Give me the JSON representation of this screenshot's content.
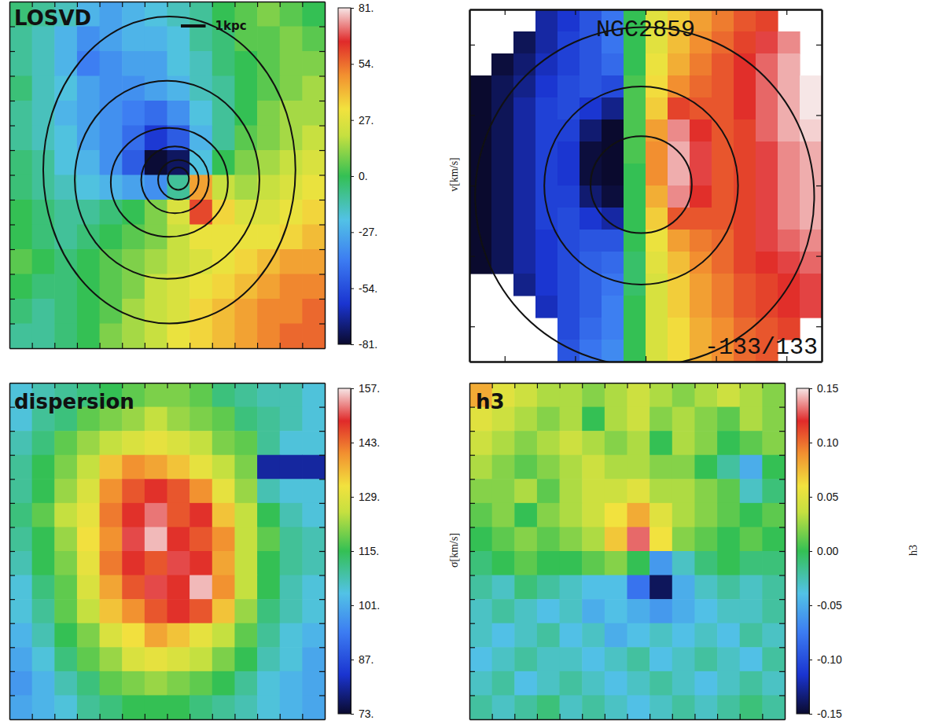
{
  "chart_data": [
    {
      "type": "heatmap",
      "title": "LOSVD",
      "xlim": [
        0,
        14
      ],
      "ylim": [
        0,
        14
      ],
      "xticks": [
        1,
        2,
        3,
        4,
        5,
        6,
        7,
        8,
        9,
        10,
        11,
        12,
        13
      ],
      "yticks": [
        1,
        2,
        3,
        4,
        5,
        6,
        7,
        8,
        9,
        10,
        11,
        12,
        13
      ],
      "tick_labels": false,
      "cells": [
        [
          -5,
          -10,
          -15,
          -25,
          -30,
          -25,
          -20,
          -15,
          -10,
          0,
          5,
          10,
          5,
          0
        ],
        [
          -10,
          -15,
          -25,
          -35,
          -30,
          -25,
          -25,
          -20,
          -10,
          -5,
          5,
          5,
          10,
          5
        ],
        [
          -10,
          -15,
          -25,
          -40,
          -35,
          -30,
          -30,
          -20,
          -15,
          -5,
          0,
          5,
          10,
          10
        ],
        [
          -5,
          -15,
          -20,
          -30,
          -35,
          -35,
          -30,
          -25,
          -15,
          -10,
          0,
          5,
          10,
          15
        ],
        [
          -10,
          -15,
          -25,
          -30,
          -35,
          -40,
          -45,
          -35,
          -20,
          -10,
          0,
          10,
          15,
          15
        ],
        [
          -10,
          -15,
          -20,
          -30,
          -35,
          -45,
          -60,
          -50,
          -25,
          -10,
          5,
          10,
          15,
          20
        ],
        [
          -5,
          -10,
          -20,
          -25,
          -35,
          -50,
          -80,
          -75,
          -20,
          0,
          10,
          15,
          20,
          25
        ],
        [
          -5,
          -10,
          -15,
          -20,
          -25,
          -30,
          -35,
          -10,
          45,
          20,
          15,
          20,
          25,
          30
        ],
        [
          0,
          -5,
          -10,
          -10,
          -5,
          0,
          10,
          25,
          60,
          35,
          25,
          25,
          30,
          35
        ],
        [
          0,
          -5,
          -10,
          -5,
          0,
          5,
          10,
          20,
          30,
          30,
          30,
          30,
          35,
          40
        ],
        [
          5,
          0,
          -5,
          0,
          5,
          10,
          15,
          20,
          25,
          30,
          35,
          40,
          45,
          45
        ],
        [
          0,
          -5,
          -5,
          0,
          5,
          10,
          20,
          25,
          30,
          35,
          40,
          45,
          50,
          50
        ],
        [
          -5,
          -10,
          -5,
          0,
          5,
          15,
          20,
          25,
          35,
          40,
          45,
          50,
          50,
          55
        ],
        [
          -10,
          -10,
          -5,
          0,
          10,
          15,
          20,
          30,
          35,
          40,
          45,
          50,
          55,
          55
        ]
      ],
      "contours": [
        {
          "cx": 7.1,
          "cy": 7.2,
          "rx": 5.6,
          "ry": 6.2
        },
        {
          "cx": 7.0,
          "cy": 6.8,
          "rx": 4.1,
          "ry": 4.0
        },
        {
          "cx": 7.1,
          "cy": 6.7,
          "rx": 2.6,
          "ry": 2.2
        },
        {
          "cx": 7.35,
          "cy": 6.8,
          "rx": 1.5,
          "ry": 1.35
        },
        {
          "cx": 7.5,
          "cy": 6.8,
          "rx": 0.9,
          "ry": 0.8
        },
        {
          "cx": 7.5,
          "cy": 6.85,
          "rx": 0.47,
          "ry": 0.45
        }
      ],
      "scale_bar": {
        "label": "1kpc",
        "length": 1.1
      },
      "colorbar": {
        "range": [
          -81,
          81
        ],
        "ticks": [
          {
            "value": 81,
            "label": "81."
          },
          {
            "value": 54,
            "label": "54."
          },
          {
            "value": 27,
            "label": "27."
          },
          {
            "value": 0,
            "label": "0."
          },
          {
            "value": -27,
            "label": "-27."
          },
          {
            "value": -54,
            "label": "-54."
          },
          {
            "value": -81,
            "label": "-81."
          }
        ],
        "label": "v[km/s]"
      }
    },
    {
      "type": "heatmap",
      "title": "NGC2859",
      "annotation": "-133/133",
      "xlim": [
        0,
        16
      ],
      "ylim": [
        0,
        16
      ],
      "xticks": [
        1.6,
        4.8,
        8,
        11.2,
        14.4
      ],
      "yticks": [
        1.6,
        4.8,
        8,
        11.2,
        14.4
      ],
      "tick_labels": false,
      "cells": [
        [
          null,
          null,
          null,
          -110,
          -100,
          -85,
          -70,
          0,
          45,
          60,
          75,
          85,
          95,
          100,
          null,
          null
        ],
        [
          null,
          null,
          -125,
          -110,
          -95,
          -85,
          -70,
          0,
          45,
          65,
          80,
          90,
          100,
          110,
          120,
          null
        ],
        [
          null,
          -130,
          -120,
          -105,
          -95,
          -85,
          -75,
          0,
          50,
          70,
          85,
          95,
          105,
          115,
          125,
          null
        ],
        [
          -133,
          -125,
          -115,
          -100,
          -90,
          -85,
          -90,
          5,
          55,
          80,
          90,
          95,
          105,
          115,
          125,
          133
        ],
        [
          -133,
          -125,
          -110,
          -95,
          -90,
          -100,
          -115,
          5,
          60,
          100,
          95,
          95,
          105,
          115,
          125,
          133
        ],
        [
          -133,
          -125,
          -110,
          -95,
          -95,
          -120,
          -133,
          5,
          75,
          120,
          105,
          95,
          100,
          115,
          125,
          130
        ],
        [
          -133,
          -125,
          -110,
          -95,
          -100,
          -130,
          -133,
          5,
          80,
          125,
          110,
          95,
          100,
          110,
          120,
          125
        ],
        [
          -133,
          -125,
          -110,
          -95,
          -100,
          -130,
          -133,
          0,
          80,
          125,
          110,
          95,
          100,
          110,
          120,
          125
        ],
        [
          -133,
          -125,
          -110,
          -95,
          -95,
          -120,
          -130,
          0,
          70,
          120,
          105,
          95,
          100,
          110,
          120,
          125
        ],
        [
          -133,
          -125,
          -110,
          -95,
          -90,
          -100,
          -110,
          0,
          60,
          95,
          95,
          95,
          100,
          110,
          120,
          125
        ],
        [
          -133,
          -125,
          -110,
          -100,
          -90,
          -85,
          -85,
          0,
          50,
          75,
          85,
          90,
          100,
          110,
          115,
          120
        ],
        [
          -133,
          -125,
          -110,
          -100,
          -90,
          -80,
          -75,
          -5,
          45,
          65,
          80,
          90,
          100,
          105,
          110,
          115
        ],
        [
          null,
          null,
          -115,
          -100,
          -90,
          -80,
          -70,
          -5,
          40,
          60,
          75,
          85,
          95,
          100,
          105,
          110
        ],
        [
          null,
          null,
          null,
          -105,
          -90,
          -80,
          -65,
          0,
          40,
          60,
          75,
          85,
          95,
          100,
          105,
          110
        ],
        [
          null,
          null,
          null,
          null,
          -90,
          -75,
          -65,
          0,
          40,
          55,
          70,
          80,
          90,
          95,
          100,
          null
        ],
        [
          null,
          null,
          null,
          null,
          -85,
          -70,
          -60,
          0,
          40,
          55,
          70,
          80,
          90,
          95,
          null,
          null
        ]
      ],
      "contours": [
        {
          "cx": 7.8,
          "cy": 8.04,
          "rx": 2.3,
          "ry": 2.2
        },
        {
          "cx": 7.8,
          "cy": 8.0,
          "rx": 4.4,
          "ry": 4.5
        },
        {
          "cx": 7.96,
          "cy": 7.5,
          "rx": 7.7,
          "ry": 7.7
        }
      ],
      "colorbar": {
        "range": [
          -133,
          133
        ]
      }
    },
    {
      "type": "heatmap",
      "title": "dispersion",
      "xlim": [
        0,
        14
      ],
      "ylim": [
        0,
        14
      ],
      "xticks": [
        1,
        2,
        3,
        4,
        5,
        6,
        7,
        8,
        9,
        10,
        11,
        12,
        13
      ],
      "yticks": [
        1,
        2,
        3,
        4,
        5,
        6,
        7,
        8,
        9,
        10,
        11,
        12,
        13
      ],
      "tick_labels": false,
      "cells": [
        [
          105,
          108,
          110,
          112,
          115,
          118,
          120,
          120,
          118,
          112,
          110,
          108,
          108,
          105
        ],
        [
          105,
          110,
          112,
          118,
          120,
          122,
          125,
          122,
          120,
          118,
          112,
          110,
          108,
          105
        ],
        [
          108,
          112,
          118,
          122,
          125,
          128,
          130,
          128,
          125,
          120,
          118,
          110,
          105,
          105
        ],
        [
          110,
          115,
          120,
          125,
          135,
          140,
          138,
          135,
          130,
          125,
          120,
          80,
          80,
          80
        ],
        [
          110,
          115,
          122,
          128,
          140,
          145,
          148,
          145,
          140,
          130,
          122,
          108,
          105,
          105
        ],
        [
          112,
          118,
          125,
          130,
          142,
          148,
          152,
          145,
          148,
          135,
          125,
          115,
          108,
          105
        ],
        [
          110,
          115,
          122,
          132,
          140,
          150,
          155,
          148,
          145,
          140,
          125,
          118,
          110,
          108
        ],
        [
          108,
          115,
          120,
          130,
          142,
          148,
          145,
          150,
          148,
          138,
          125,
          115,
          110,
          108
        ],
        [
          105,
          112,
          118,
          128,
          138,
          145,
          150,
          148,
          155,
          140,
          125,
          115,
          108,
          105
        ],
        [
          105,
          110,
          118,
          125,
          135,
          140,
          145,
          148,
          145,
          135,
          122,
          112,
          108,
          105
        ],
        [
          102,
          108,
          115,
          120,
          128,
          132,
          138,
          135,
          130,
          125,
          118,
          110,
          105,
          102
        ],
        [
          100,
          105,
          112,
          118,
          122,
          128,
          130,
          128,
          125,
          120,
          115,
          108,
          105,
          100
        ],
        [
          98,
          102,
          108,
          112,
          118,
          120,
          122,
          120,
          118,
          115,
          110,
          105,
          102,
          100
        ],
        [
          100,
          102,
          105,
          110,
          112,
          115,
          115,
          115,
          112,
          110,
          108,
          105,
          102,
          100
        ]
      ],
      "colorbar": {
        "range": [
          73,
          157
        ],
        "ticks": [
          {
            "value": 157,
            "label": "157."
          },
          {
            "value": 143,
            "label": "143."
          },
          {
            "value": 129,
            "label": "129."
          },
          {
            "value": 115,
            "label": "115."
          },
          {
            "value": 101,
            "label": "101."
          },
          {
            "value": 87,
            "label": "87."
          },
          {
            "value": 73,
            "label": "73."
          }
        ],
        "label": "σ[km/s]"
      }
    },
    {
      "type": "heatmap",
      "title": "h3",
      "xlim": [
        0,
        14
      ],
      "ylim": [
        0,
        14
      ],
      "xticks": [
        1,
        2,
        3,
        4,
        5,
        6,
        7,
        8,
        9,
        10,
        11,
        12,
        13
      ],
      "yticks": [
        1,
        2,
        3,
        4,
        5,
        6,
        7,
        8,
        9,
        10,
        11,
        12,
        13
      ],
      "tick_labels": false,
      "cells": [
        [
          0.08,
          0.05,
          0.04,
          0.03,
          0.03,
          0.02,
          0.03,
          0.04,
          0.03,
          0.02,
          0.03,
          0.04,
          0.03,
          0.02
        ],
        [
          0.05,
          0.04,
          0.03,
          0.02,
          0.03,
          0,
          0.03,
          0.04,
          0.02,
          0.03,
          0.02,
          0.01,
          0.03,
          0.02
        ],
        [
          0.04,
          0.03,
          0.02,
          0.03,
          0.04,
          0.03,
          0.02,
          0.03,
          0,
          0.03,
          0.02,
          0,
          0.01,
          0.02
        ],
        [
          0.03,
          0.02,
          0.01,
          0.02,
          0.03,
          0.04,
          0.03,
          0.03,
          0.02,
          0.02,
          0,
          -0.02,
          -0.05,
          0
        ],
        [
          0.02,
          0.02,
          0.03,
          0.01,
          0.03,
          0.04,
          0.04,
          0.05,
          0.03,
          0.03,
          0.02,
          0.01,
          -0.03,
          -0.01
        ],
        [
          0.01,
          0.02,
          0,
          0.02,
          0.03,
          0.04,
          0.06,
          0.08,
          0.05,
          0.03,
          0.02,
          0.01,
          0,
          0.01
        ],
        [
          0,
          0.01,
          0.02,
          0.01,
          0.02,
          0.03,
          0.07,
          0.13,
          0.06,
          0.02,
          0.01,
          0,
          0.01,
          0
        ],
        [
          -0.01,
          0,
          0.01,
          0,
          0,
          0.01,
          0.02,
          0,
          -0.06,
          -0.03,
          -0.01,
          0,
          -0.01,
          -0.01
        ],
        [
          -0.02,
          -0.03,
          -0.01,
          -0.02,
          -0.03,
          -0.04,
          -0.04,
          -0.08,
          -0.14,
          -0.05,
          -0.03,
          -0.02,
          -0.03,
          -0.02
        ],
        [
          -0.03,
          -0.02,
          -0.03,
          -0.04,
          -0.03,
          -0.05,
          -0.04,
          -0.05,
          -0.06,
          -0.05,
          -0.04,
          -0.03,
          -0.03,
          -0.02
        ],
        [
          -0.03,
          -0.04,
          -0.03,
          -0.02,
          -0.04,
          -0.03,
          -0.05,
          -0.04,
          -0.03,
          -0.04,
          -0.03,
          -0.04,
          -0.02,
          -0.03
        ],
        [
          -0.04,
          -0.03,
          -0.02,
          -0.03,
          -0.03,
          -0.04,
          -0.03,
          -0.02,
          -0.04,
          -0.03,
          -0.02,
          -0.03,
          -0.04,
          -0.02
        ],
        [
          -0.03,
          -0.02,
          -0.04,
          -0.03,
          -0.02,
          -0.03,
          -0.04,
          -0.03,
          -0.02,
          -0.03,
          -0.04,
          -0.03,
          -0.02,
          -0.03
        ],
        [
          -0.02,
          -0.03,
          -0.02,
          -0.01,
          -0.03,
          -0.02,
          -0.03,
          -0.04,
          -0.03,
          -0.02,
          -0.03,
          -0.02,
          -0.01,
          -0.02
        ]
      ],
      "colorbar": {
        "range": [
          -0.15,
          0.15
        ],
        "ticks": [
          0.15,
          {
            "value": 0.1,
            "label": "0.10"
          },
          0.05,
          {
            "value": 0,
            "label": "0.00"
          },
          -0.05,
          {
            "value": -0.1,
            "label": "-0.10"
          },
          -0.15
        ],
        "label": "h3"
      }
    }
  ]
}
